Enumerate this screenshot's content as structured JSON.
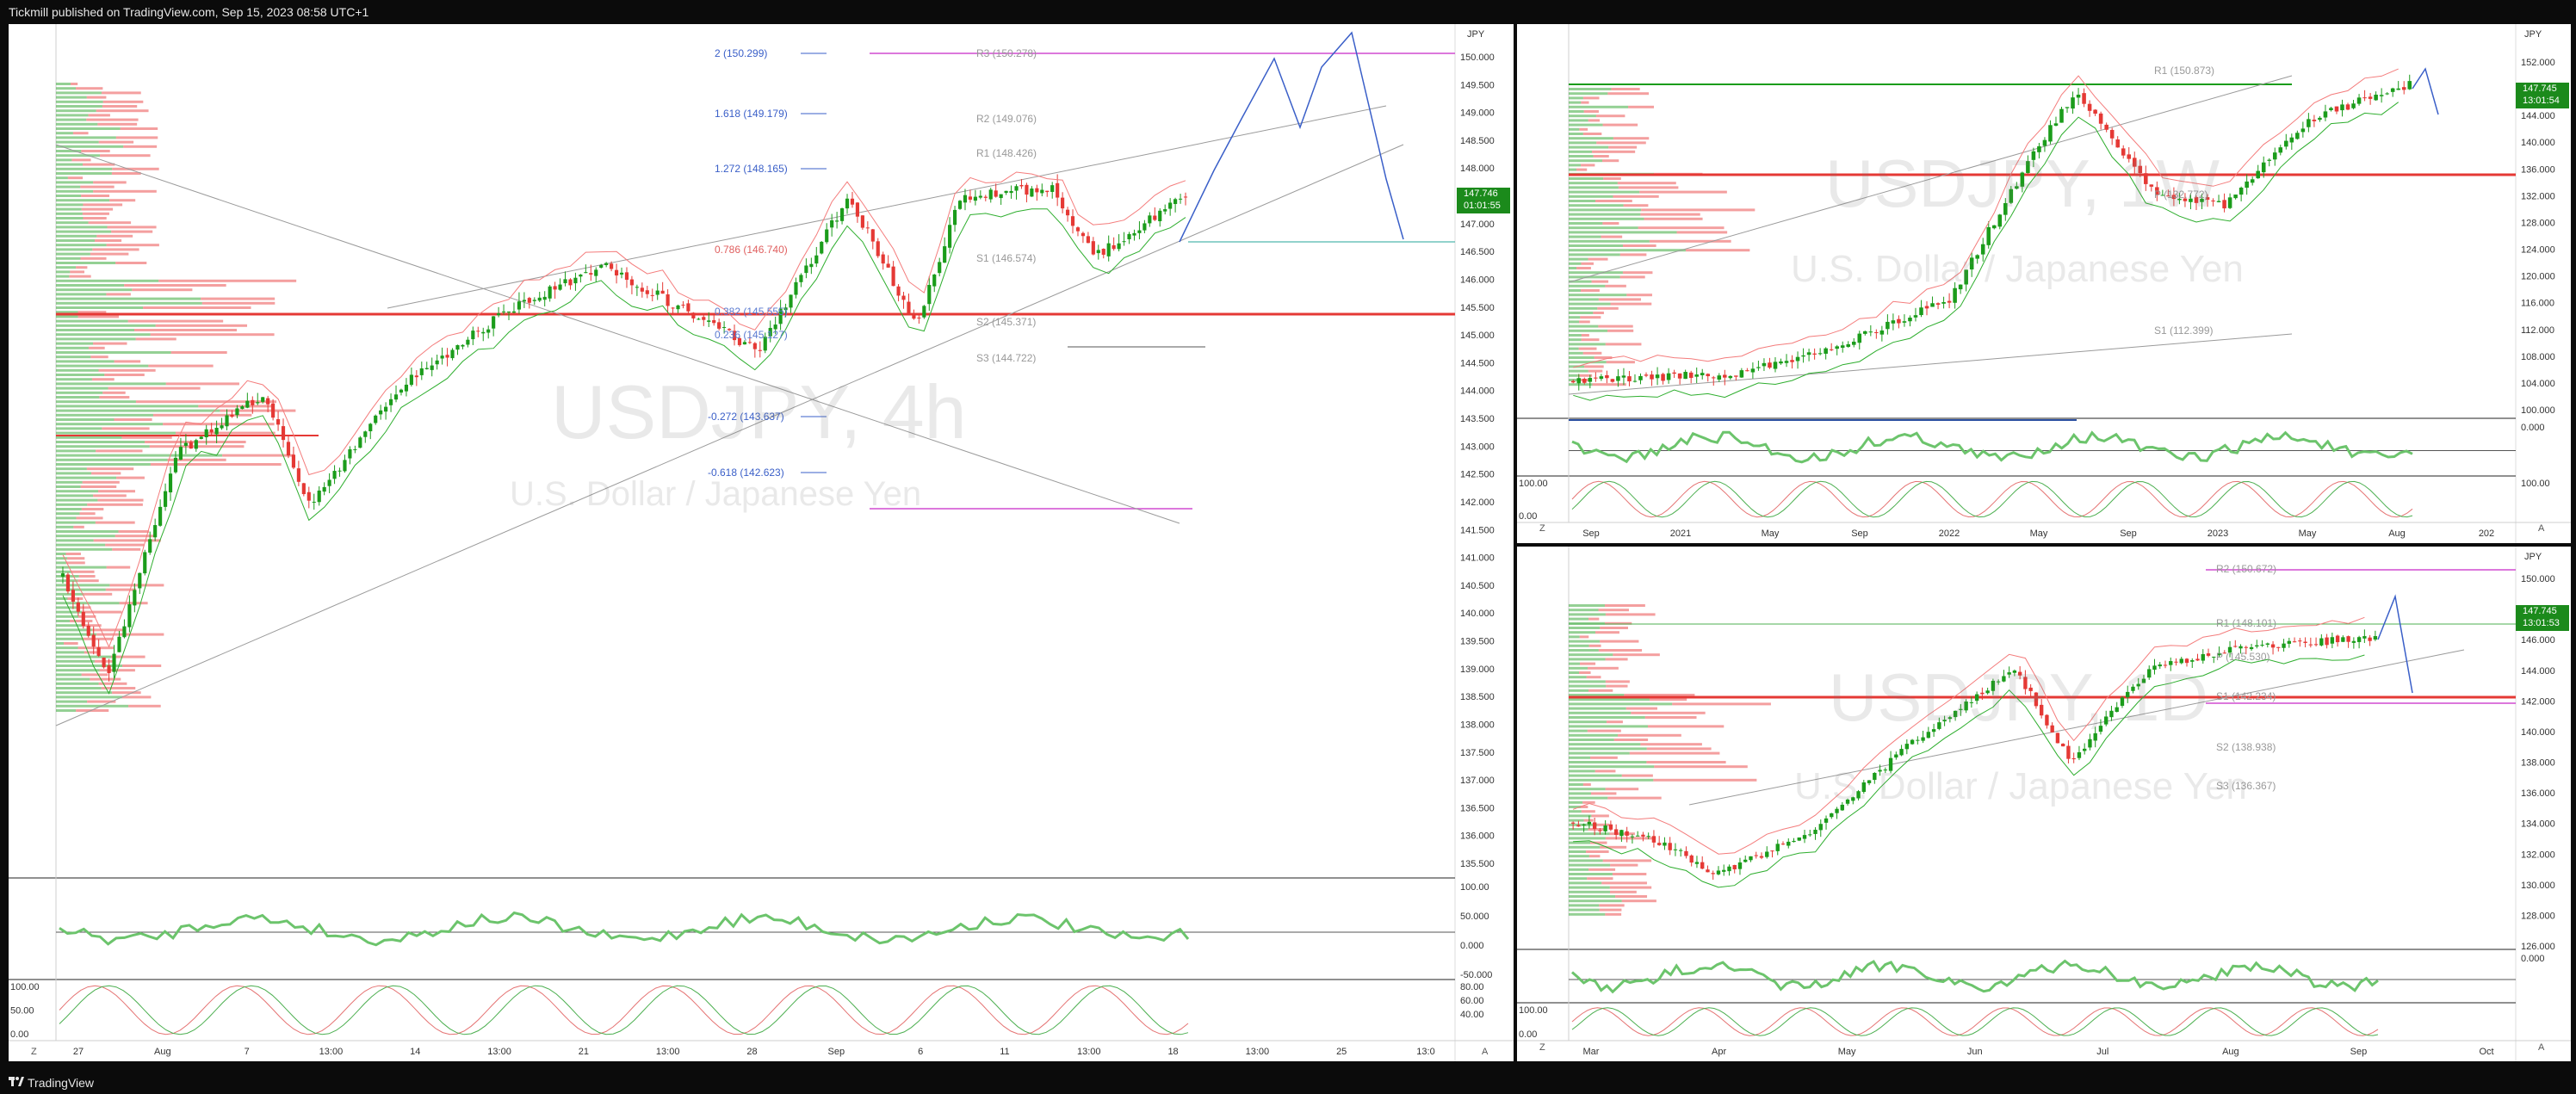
{
  "header": {
    "publish_info": "Tickmill published on TradingView.com, Sep 15, 2023 08:58 UTC+1"
  },
  "footer": {
    "brand": "TradingView"
  },
  "colors": {
    "up": "#26a69a",
    "green": "#1b9c1b",
    "red": "#e53935",
    "pink": "#f47c7c",
    "magenta": "#d04bd0",
    "blue": "#3a5fc8",
    "price_tag": "#1b8a1b"
  },
  "left_chart": {
    "currency": "JPY",
    "watermark_symbol": "USDJPY, 4h",
    "watermark_desc": "U.S. Dollar / Japanese Yen",
    "price_label": "147.746",
    "countdown": "01:01:55",
    "y_ticks": [
      "150.000",
      "149.500",
      "149.000",
      "148.500",
      "148.000",
      "147.500",
      "147.000",
      "146.500",
      "146.000",
      "145.500",
      "145.000",
      "144.500",
      "144.000",
      "143.500",
      "143.000",
      "142.500",
      "142.000",
      "141.500",
      "141.000",
      "140.500",
      "140.000",
      "139.500",
      "139.000",
      "138.500",
      "138.000",
      "137.500",
      "137.000",
      "136.500",
      "136.000",
      "135.500"
    ],
    "x_ticks": [
      "27",
      "Aug",
      "7",
      "13:00",
      "14",
      "13:00",
      "21",
      "13:00",
      "28",
      "Sep",
      "6",
      "11",
      "13:00",
      "18",
      "13:00",
      "25",
      "13:0"
    ],
    "fib_levels": [
      "2 (150.299)",
      "1.618 (149.179)",
      "1.272 (148.165)",
      "0.786 (146.740)",
      "0.382 (145.555)",
      "0.236 (145.127)",
      "-0.272 (143.637)",
      "-0.618 (142.623)"
    ],
    "pivot_levels": [
      "R3 (150.278)",
      "R2 (149.076)",
      "R1 (148.426)",
      "S1 (146.574)",
      "S2 (145.371)",
      "S3 (144.722)"
    ],
    "osc1_ticks": [
      "100.00",
      "50.000",
      "0.000",
      "-50.000"
    ],
    "osc2_ticks": [
      "100.00",
      "50.00",
      "0.00"
    ],
    "osc2_right_ticks": [
      "80.00",
      "60.00",
      "40.00"
    ],
    "corner_left": "Z",
    "corner_right": "A"
  },
  "right_top_chart": {
    "currency": "JPY",
    "watermark_symbol": "USDJPY, 1W",
    "watermark_desc": "U.S. Dollar / Japanese Yen",
    "price_label": "147.745",
    "countdown": "13:01:54",
    "y_ticks": [
      "152.000",
      "148.000",
      "144.000",
      "140.000",
      "136.000",
      "132.000",
      "128.000",
      "124.000",
      "120.000",
      "116.000",
      "112.000",
      "108.000",
      "104.000",
      "100.000"
    ],
    "x_ticks": [
      "Sep",
      "2021",
      "May",
      "Sep",
      "2022",
      "May",
      "Sep",
      "2023",
      "May",
      "Aug",
      "202"
    ],
    "pivot_levels": [
      "R1 (150.873)",
      "P (132.772)",
      "S1 (112.399)"
    ],
    "osc1_ticks": [
      "0.000"
    ],
    "osc2_ticks": [
      "100.00",
      "0.00"
    ],
    "osc2_right_ticks": [
      "100.00"
    ],
    "corner_left": "Z",
    "corner_right": "A"
  },
  "right_bottom_chart": {
    "currency": "JPY",
    "watermark_symbol": "USDJPY, 1D",
    "watermark_desc": "U.S. Dollar / Japanese Yen",
    "price_label": "147.745",
    "countdown": "13:01:53",
    "y_ticks": [
      "150.000",
      "148.000",
      "146.000",
      "144.000",
      "142.000",
      "140.000",
      "138.000",
      "136.000",
      "134.000",
      "132.000",
      "130.000",
      "128.000",
      "126.000"
    ],
    "x_ticks": [
      "Mar",
      "Apr",
      "May",
      "Jun",
      "Jul",
      "Aug",
      "Sep",
      "Oct"
    ],
    "pivot_levels": [
      "R2 (150.672)",
      "R1 (148.101)",
      "P (145.530)",
      "S1 (142.234)",
      "S2 (138.938)",
      "S3 (136.367)"
    ],
    "osc1_ticks": [
      "0.000"
    ],
    "osc2_ticks": [
      "100.00",
      "0.00"
    ],
    "corner_left": "Z",
    "corner_right": "A"
  }
}
